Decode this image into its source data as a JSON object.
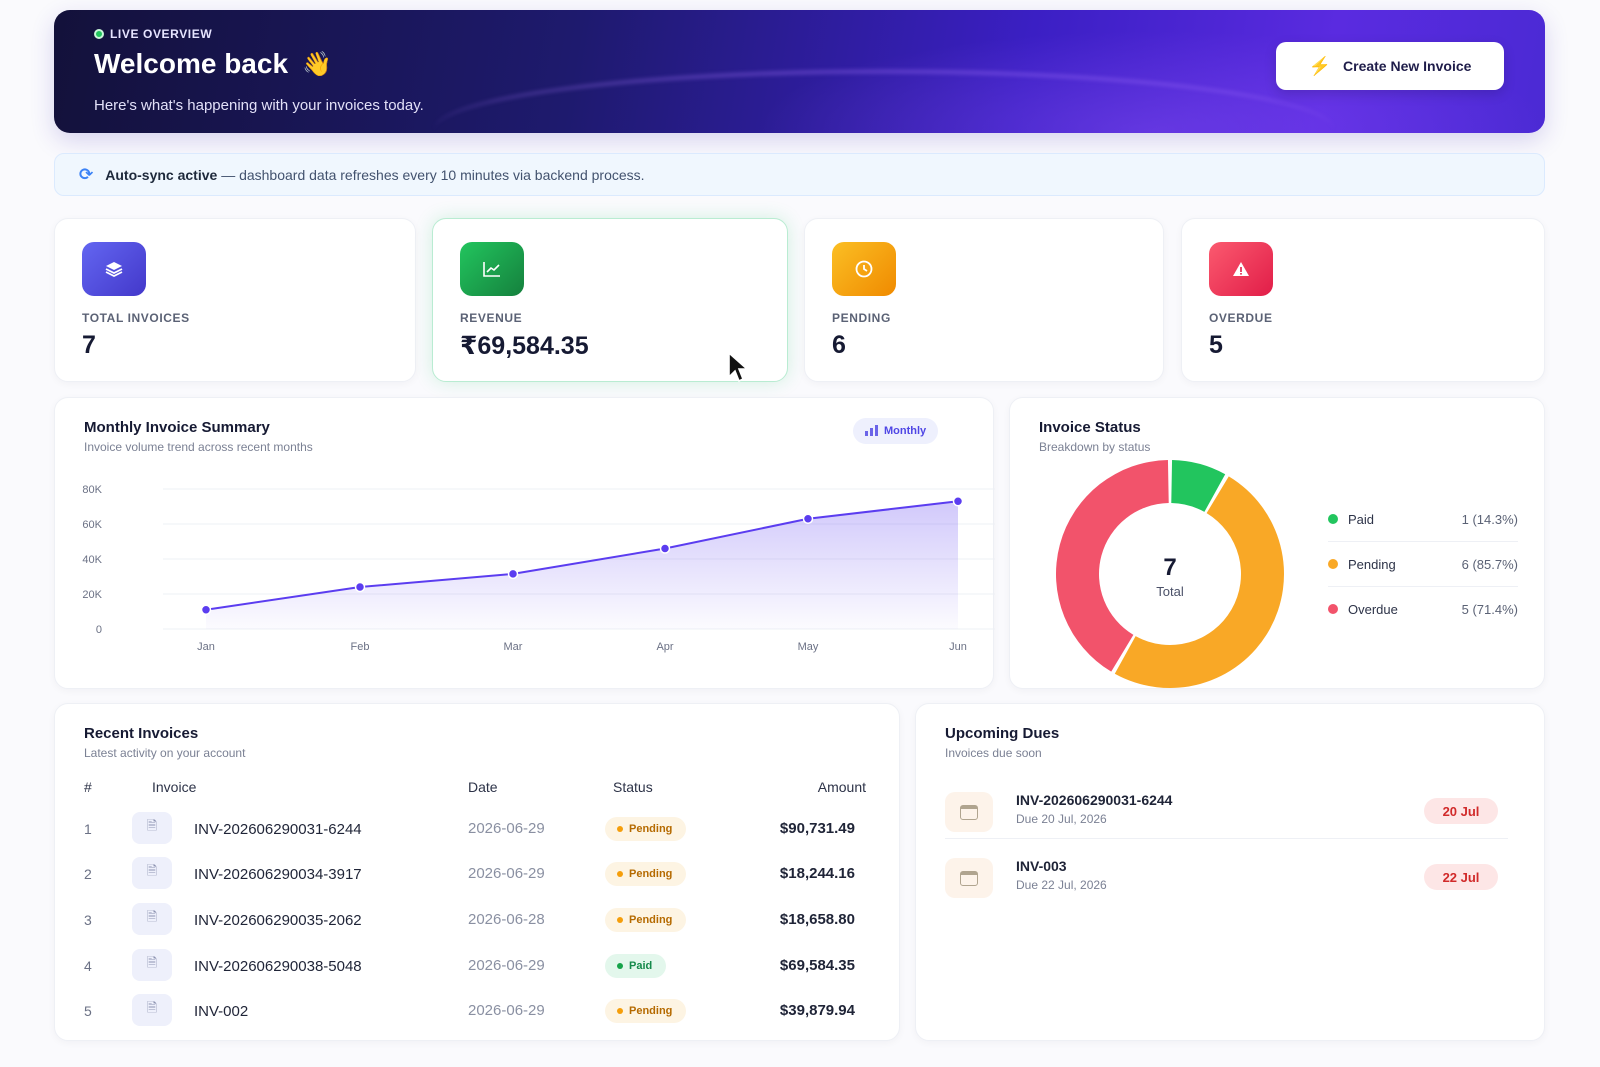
{
  "hero": {
    "live_label": "LIVE OVERVIEW",
    "title": "Welcome back",
    "emoji": "👋",
    "subtitle": "Here's what's happening with your invoices today.",
    "create_button": "Create New Invoice"
  },
  "sync": {
    "strong": "Auto-sync active",
    "text": "— dashboard data refreshes every 10 minutes via backend process."
  },
  "stats": [
    {
      "label": "TOTAL INVOICES",
      "value": "7",
      "icon": "layers-icon",
      "color": "#4f46e5"
    },
    {
      "label": "REVENUE",
      "value": "₹69,584.35",
      "icon": "trend-chart-icon",
      "color": "#16a34a"
    },
    {
      "label": "PENDING",
      "value": "6",
      "icon": "clock-icon",
      "color": "#f59e0b"
    },
    {
      "label": "OVERDUE",
      "value": "5",
      "icon": "alert-icon",
      "color": "#ef4444"
    }
  ],
  "monthly_summary": {
    "title": "Monthly Invoice Summary",
    "subtitle": "Invoice volume trend across recent months",
    "toggle_label": "Monthly"
  },
  "chart_data": [
    {
      "type": "area",
      "categories": [
        "Jan",
        "Feb",
        "Mar",
        "Apr",
        "May",
        "Jun"
      ],
      "series": [
        {
          "values": [
            11000,
            24000,
            31500,
            46000,
            63000,
            73000
          ]
        }
      ],
      "ylim": [
        0,
        80000
      ],
      "yticks": [
        "0",
        "20K",
        "40K",
        "60K",
        "80K"
      ],
      "color": "#5b3df0",
      "grid": true
    },
    {
      "type": "pie",
      "variant": "donut",
      "categories": [
        "Paid",
        "Pending",
        "Overdue"
      ],
      "values": [
        1,
        6,
        5
      ],
      "colors": [
        "#22c55e",
        "#f9a826",
        "#f2536b"
      ],
      "center_value": "7",
      "center_label": "Total"
    }
  ],
  "invoice_status": {
    "title": "Invoice Status",
    "subtitle": "Breakdown by status",
    "legend": [
      {
        "label": "Paid",
        "value": "1 (14.3%)",
        "color": "#22c55e"
      },
      {
        "label": "Pending",
        "value": "6 (85.7%)",
        "color": "#f9a826"
      },
      {
        "label": "Overdue",
        "value": "5 (71.4%)",
        "color": "#f2536b"
      }
    ]
  },
  "recent": {
    "title": "Recent Invoices",
    "subtitle": "Latest activity on your account",
    "headers": {
      "num": "#",
      "invoice": "Invoice",
      "date": "Date",
      "status": "Status",
      "amount": "Amount"
    },
    "rows": [
      {
        "num": "1",
        "invoice": "INV-202606290031-6244",
        "date": "2026-06-29",
        "status": "Pending",
        "amount": "$90,731.49"
      },
      {
        "num": "2",
        "invoice": "INV-202606290034-3917",
        "date": "2026-06-29",
        "status": "Pending",
        "amount": "$18,244.16"
      },
      {
        "num": "3",
        "invoice": "INV-202606290035-2062",
        "date": "2026-06-28",
        "status": "Pending",
        "amount": "$18,658.80"
      },
      {
        "num": "4",
        "invoice": "INV-202606290038-5048",
        "date": "2026-06-29",
        "status": "Paid",
        "amount": "$69,584.35"
      },
      {
        "num": "5",
        "invoice": "INV-002",
        "date": "2026-06-29",
        "status": "Pending",
        "amount": "$39,879.94"
      }
    ]
  },
  "dues": {
    "title": "Upcoming Dues",
    "subtitle": "Invoices due soon",
    "items": [
      {
        "invoice": "INV-202606290031-6244",
        "due": "Due 20 Jul, 2026",
        "badge": "20 Jul"
      },
      {
        "invoice": "INV-003",
        "due": "Due 22 Jul, 2026",
        "badge": "22 Jul"
      }
    ]
  }
}
